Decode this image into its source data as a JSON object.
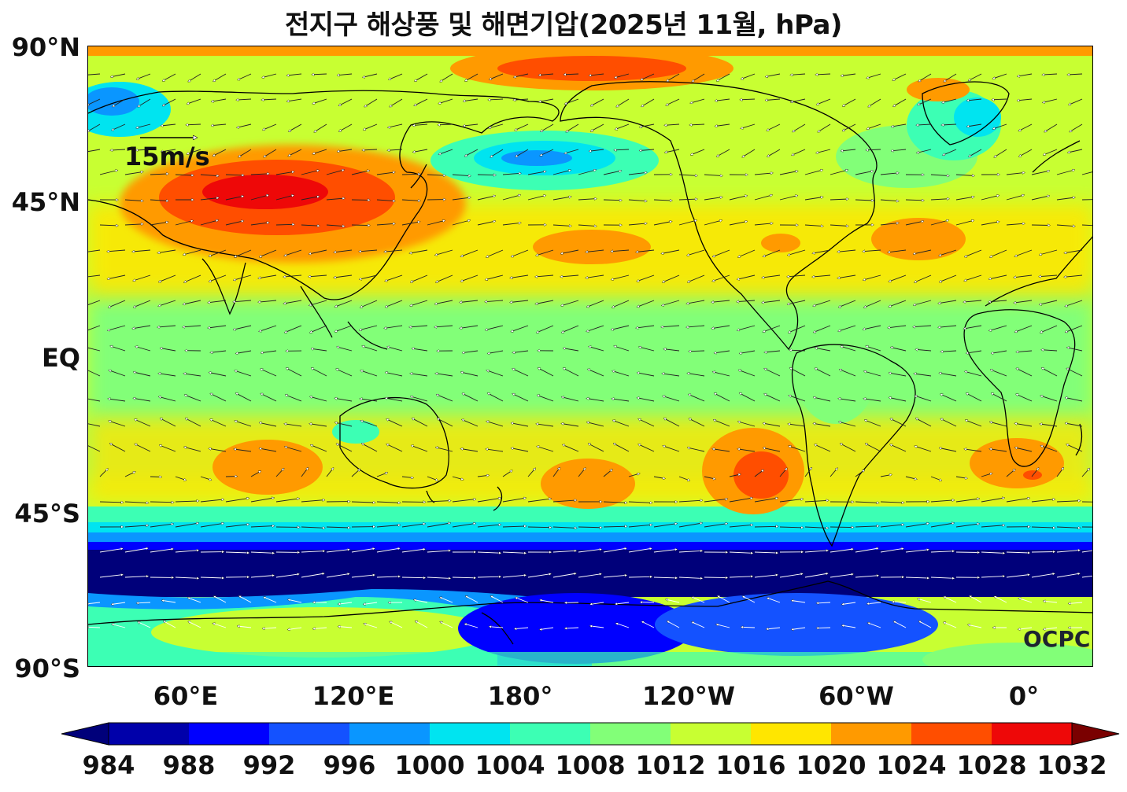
{
  "title": "전지구 해상풍 및 해면기압(2025년 11월, hPa)",
  "map": {
    "lat_labels": [
      "90°N",
      "45°N",
      "EQ",
      "45°S",
      "90°S"
    ],
    "lon_labels": [
      "60°E",
      "120°E",
      "180°",
      "120°W",
      "60°W",
      "0°"
    ],
    "wind_reference_label": "15m/s",
    "logo": "OCPC",
    "fields": [
      "sea-level pressure",
      "sea-surface wind"
    ]
  },
  "colorbar": {
    "labels": [
      "984",
      "988",
      "992",
      "996",
      "1000",
      "1004",
      "1008",
      "1012",
      "1016",
      "1020",
      "1024",
      "1028",
      "1032"
    ],
    "colors": [
      "#00007a",
      "#0000aa",
      "#0000ff",
      "#1452ff",
      "#0a96ff",
      "#00e4f0",
      "#3cffb4",
      "#82ff78",
      "#c8ff32",
      "#ffe600",
      "#ff9a00",
      "#ff4e00",
      "#ee0808",
      "#7a0000"
    ]
  }
}
